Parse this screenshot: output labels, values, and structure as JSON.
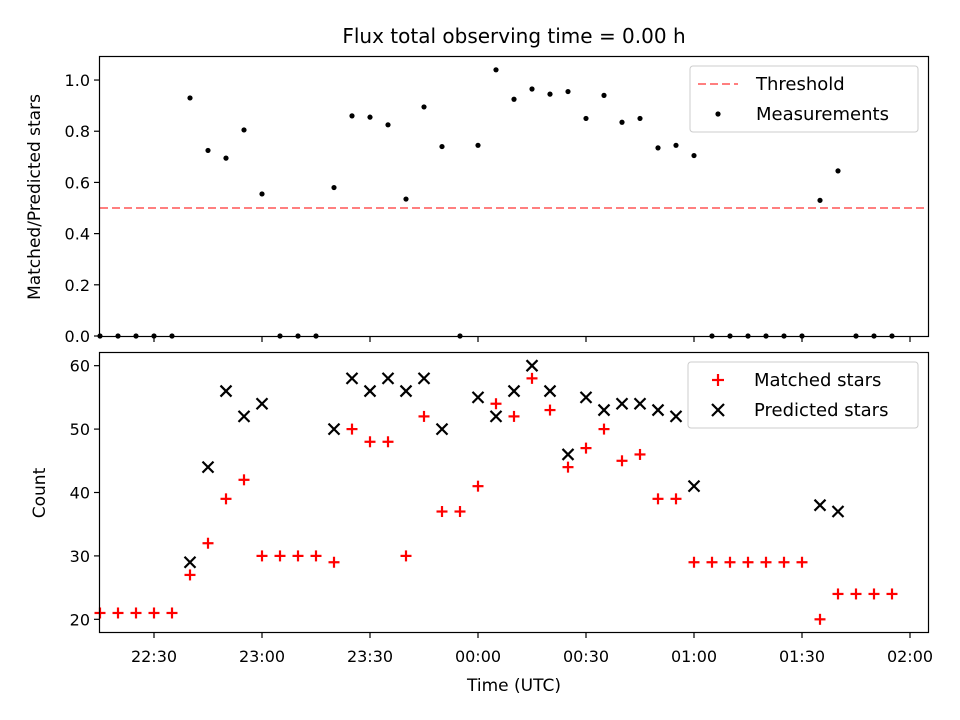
{
  "chart_data": [
    {
      "type": "scatter",
      "title": "Flux total observing time = 0.00 h",
      "xlabel": "",
      "ylabel": "Matched/Predicted stars",
      "ylim": [
        0,
        1.09
      ],
      "yticks": [
        0.0,
        0.2,
        0.4,
        0.6,
        0.8,
        1.0
      ],
      "ytick_labels": [
        "0.0",
        "0.2",
        "0.4",
        "0.6",
        "0.8",
        "1.0"
      ],
      "legend_position": "top-right",
      "series": [
        {
          "name": "Threshold",
          "kind": "line",
          "style": "dashed",
          "color": "#ff7f7f",
          "x": [
            "22:15",
            "02:05"
          ],
          "y": [
            0.5,
            0.5
          ]
        },
        {
          "name": "Measurements",
          "kind": "scatter",
          "marker": "dot",
          "color": "#000000",
          "x": [
            "22:15",
            "22:20",
            "22:25",
            "22:30",
            "22:35",
            "22:40",
            "22:45",
            "22:50",
            "22:55",
            "23:00",
            "23:05",
            "23:10",
            "23:15",
            "23:20",
            "23:25",
            "23:30",
            "23:35",
            "23:40",
            "23:45",
            "23:50",
            "23:55",
            "00:00",
            "00:05",
            "00:10",
            "00:15",
            "00:20",
            "00:25",
            "00:30",
            "00:35",
            "00:40",
            "00:45",
            "00:50",
            "00:55",
            "01:00",
            "01:05",
            "01:10",
            "01:15",
            "01:20",
            "01:25",
            "01:30",
            "01:35",
            "01:40",
            "01:45",
            "01:50",
            "01:55"
          ],
          "y": [
            0,
            0,
            0,
            0,
            0,
            0.93,
            0.725,
            0.695,
            0.805,
            0.555,
            0,
            0,
            0,
            0.58,
            0.86,
            0.855,
            0.825,
            0.535,
            0.895,
            0.74,
            0,
            0.745,
            1.04,
            0.925,
            0.965,
            0.945,
            0.955,
            0.85,
            0.94,
            0.835,
            0.85,
            0.735,
            0.745,
            0.705,
            0,
            0,
            0,
            0,
            0,
            0,
            0.53,
            0.645,
            0,
            0,
            0
          ]
        }
      ]
    },
    {
      "type": "scatter",
      "title": "",
      "xlabel": "Time (UTC)",
      "ylabel": "Count",
      "xlim": [
        "22:15",
        "02:05"
      ],
      "xticks": [
        "22:30",
        "23:00",
        "23:30",
        "00:00",
        "00:30",
        "01:00",
        "01:30",
        "02:00"
      ],
      "ylim": [
        18,
        62
      ],
      "yticks": [
        20,
        30,
        40,
        50,
        60
      ],
      "ytick_labels": [
        "20",
        "30",
        "40",
        "50",
        "60"
      ],
      "legend_position": "top-right",
      "series": [
        {
          "name": "Matched stars",
          "kind": "scatter",
          "marker": "plus",
          "color": "#ff0000",
          "x": [
            "22:15",
            "22:20",
            "22:25",
            "22:30",
            "22:35",
            "22:40",
            "22:45",
            "22:50",
            "22:55",
            "23:00",
            "23:05",
            "23:10",
            "23:15",
            "23:20",
            "23:25",
            "23:30",
            "23:35",
            "23:40",
            "23:45",
            "23:50",
            "23:55",
            "00:00",
            "00:05",
            "00:10",
            "00:15",
            "00:20",
            "00:25",
            "00:30",
            "00:35",
            "00:40",
            "00:45",
            "00:50",
            "00:55",
            "01:00",
            "01:05",
            "01:10",
            "01:15",
            "01:20",
            "01:25",
            "01:30",
            "01:35",
            "01:40",
            "01:45",
            "01:50",
            "01:55"
          ],
          "y": [
            21,
            21,
            21,
            21,
            21,
            27,
            32,
            39,
            42,
            30,
            30,
            30,
            30,
            29,
            50,
            48,
            48,
            30,
            52,
            37,
            37,
            41,
            54,
            52,
            58,
            53,
            44,
            47,
            50,
            45,
            46,
            39,
            39,
            29,
            29,
            29,
            29,
            29,
            29,
            29,
            20,
            24,
            24,
            24,
            24
          ]
        },
        {
          "name": "Predicted stars",
          "kind": "scatter",
          "marker": "x",
          "color": "#000000",
          "x": [
            "22:40",
            "22:45",
            "22:50",
            "22:55",
            "23:00",
            "23:20",
            "23:25",
            "23:30",
            "23:35",
            "23:40",
            "23:45",
            "23:50",
            "00:00",
            "00:05",
            "00:10",
            "00:15",
            "00:20",
            "00:25",
            "00:30",
            "00:35",
            "00:40",
            "00:45",
            "00:50",
            "00:55",
            "01:00",
            "01:35",
            "01:40"
          ],
          "y": [
            29,
            44,
            56,
            52,
            54,
            50,
            58,
            56,
            58,
            56,
            58,
            50,
            55,
            52,
            56,
            60,
            56,
            46,
            55,
            53,
            54,
            54,
            53,
            52,
            41,
            38,
            37
          ]
        }
      ]
    }
  ]
}
